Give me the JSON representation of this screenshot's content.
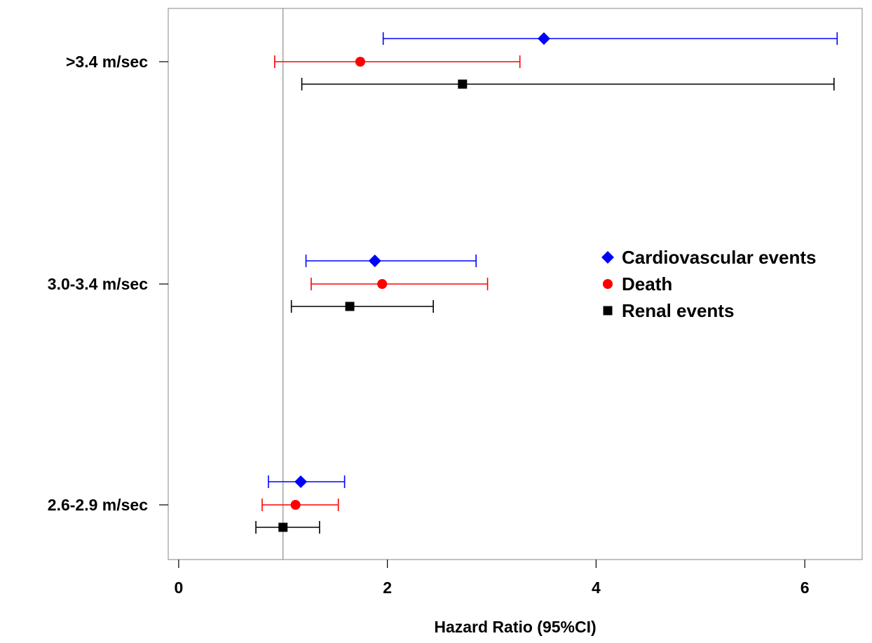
{
  "chart_data": {
    "type": "forest",
    "xlabel": "Hazard Ratio (95%CI)",
    "ylabel": "",
    "title": "",
    "xlim": [
      -0.1,
      6.55
    ],
    "x_ticks": [
      0,
      2,
      4,
      6
    ],
    "x_tick_labels": [
      "0",
      "2",
      "4",
      "6"
    ],
    "reference_line": 1,
    "grid": false,
    "legend_position": "right-middle",
    "categories": [
      ">3.4 m/sec",
      "3.0-3.4 m/sec",
      "2.6-2.9 m/sec"
    ],
    "series": [
      {
        "name": "Cardiovascular events",
        "color": "#0000ff",
        "marker": "diamond",
        "values": [
          {
            "category": ">3.4 m/sec",
            "hr": 3.5,
            "lower": 1.96,
            "upper": 6.31
          },
          {
            "category": "3.0-3.4 m/sec",
            "hr": 1.88,
            "lower": 1.22,
            "upper": 2.85
          },
          {
            "category": "2.6-2.9 m/sec",
            "hr": 1.17,
            "lower": 0.86,
            "upper": 1.59
          }
        ]
      },
      {
        "name": "Death",
        "color": "#ff0000",
        "marker": "circle",
        "values": [
          {
            "category": ">3.4 m/sec",
            "hr": 1.74,
            "lower": 0.92,
            "upper": 3.27
          },
          {
            "category": "3.0-3.4 m/sec",
            "hr": 1.95,
            "lower": 1.27,
            "upper": 2.96
          },
          {
            "category": "2.6-2.9 m/sec",
            "hr": 1.12,
            "lower": 0.8,
            "upper": 1.53
          }
        ]
      },
      {
        "name": "Renal events",
        "color": "#000000",
        "marker": "square",
        "values": [
          {
            "category": ">3.4 m/sec",
            "hr": 2.72,
            "lower": 1.18,
            "upper": 6.28
          },
          {
            "category": "3.0-3.4 m/sec",
            "hr": 1.64,
            "lower": 1.08,
            "upper": 2.44
          },
          {
            "category": "2.6-2.9 m/sec",
            "hr": 1.0,
            "lower": 0.74,
            "upper": 1.35
          }
        ]
      }
    ]
  }
}
